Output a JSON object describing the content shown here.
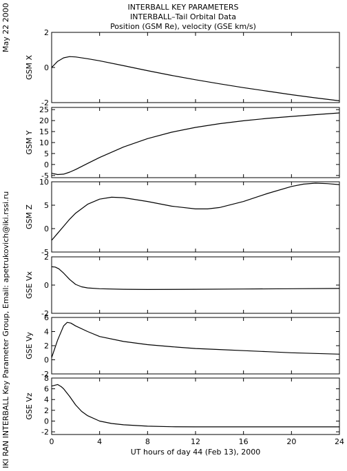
{
  "header": {
    "title_line1": "INTERBALL KEY PARAMETERS",
    "title_line2": "INTERBALL–Tail Orbital Data",
    "title_line3": "Position (GSM Re), velocity (GSE km/s)",
    "date": "May 22 2000",
    "credit": "IKI RAN INTERBALL Key Parameter Group, Email: apetrukovich@iki.rssi.ru"
  },
  "chart_data": {
    "type": "line",
    "xlabel": "UT hours of day  44 (Feb 13), 2000",
    "xlim": [
      0,
      24
    ],
    "xticks": [
      0,
      4,
      8,
      12,
      16,
      20,
      24
    ],
    "grid": false,
    "panels": [
      {
        "ylabel": "GSM X",
        "ylim": [
          -2,
          2
        ],
        "yticks": [
          -2,
          0,
          2
        ],
        "x": [
          0,
          0.5,
          1,
          1.5,
          2,
          3,
          4,
          6,
          8,
          10,
          12,
          14,
          16,
          18,
          20,
          22,
          24
        ],
        "y": [
          0,
          0.35,
          0.55,
          0.62,
          0.6,
          0.5,
          0.38,
          0.1,
          -0.18,
          -0.45,
          -0.7,
          -0.93,
          -1.15,
          -1.35,
          -1.55,
          -1.73,
          -1.9
        ]
      },
      {
        "ylabel": "GSM Y",
        "ylim": [
          -6,
          26
        ],
        "yticks": [
          -5,
          0,
          5,
          10,
          15,
          20,
          25
        ],
        "x": [
          0,
          0.5,
          1,
          1.5,
          2,
          3,
          4,
          6,
          8,
          10,
          12,
          14,
          16,
          18,
          20,
          22,
          24
        ],
        "y": [
          -4,
          -4.6,
          -4.4,
          -3.5,
          -2.3,
          0.5,
          3.2,
          8,
          11.8,
          14.7,
          16.9,
          18.6,
          19.9,
          21,
          21.9,
          22.7,
          23.5
        ]
      },
      {
        "ylabel": "GSM Z",
        "ylim": [
          -5,
          10
        ],
        "yticks": [
          -5,
          0,
          5,
          10
        ],
        "x": [
          0,
          0.5,
          1,
          1.5,
          2,
          3,
          4,
          5,
          6,
          8,
          10,
          12,
          13,
          14,
          16,
          18,
          20,
          21,
          22,
          23,
          24
        ],
        "y": [
          -2.5,
          -1,
          0.5,
          2,
          3.3,
          5.2,
          6.3,
          6.7,
          6.6,
          5.8,
          4.8,
          4.2,
          4.2,
          4.5,
          5.8,
          7.5,
          9,
          9.5,
          9.7,
          9.6,
          9.4
        ]
      },
      {
        "ylabel": "GSE Vx",
        "ylim": [
          -2,
          2
        ],
        "yticks": [
          -2,
          0,
          2
        ],
        "x": [
          0,
          0.3,
          0.6,
          1,
          1.5,
          2,
          2.5,
          3,
          4,
          6,
          8,
          12,
          16,
          20,
          24
        ],
        "y": [
          1.3,
          1.28,
          1.15,
          0.85,
          0.4,
          0.05,
          -0.12,
          -0.2,
          -0.26,
          -0.3,
          -0.31,
          -0.3,
          -0.28,
          -0.26,
          -0.24
        ]
      },
      {
        "ylabel": "GSE Vy",
        "ylim": [
          -2,
          6
        ],
        "yticks": [
          -2,
          0,
          2,
          4,
          6
        ],
        "x": [
          0,
          0.5,
          1,
          1.3,
          1.6,
          2,
          3,
          4,
          6,
          8,
          10,
          12,
          14,
          16,
          18,
          20,
          22,
          24
        ],
        "y": [
          0.3,
          2.8,
          4.8,
          5.3,
          5.2,
          4.8,
          4.0,
          3.3,
          2.6,
          2.15,
          1.85,
          1.6,
          1.45,
          1.3,
          1.15,
          1.0,
          0.9,
          0.8
        ]
      },
      {
        "ylabel": "GSE Vz",
        "ylim": [
          -2.5,
          8
        ],
        "yticks": [
          -2,
          0,
          2,
          4,
          6,
          8
        ],
        "x": [
          0,
          0.5,
          0.8,
          1,
          1.5,
          2,
          2.5,
          3,
          4,
          5,
          6,
          8,
          10,
          12,
          16,
          20,
          24
        ],
        "y": [
          6.5,
          6.8,
          6.4,
          6.0,
          4.6,
          3.0,
          1.8,
          1.0,
          0.0,
          -0.45,
          -0.7,
          -0.95,
          -1.05,
          -1.08,
          -1.08,
          -1.08,
          -1.08
        ]
      }
    ]
  }
}
